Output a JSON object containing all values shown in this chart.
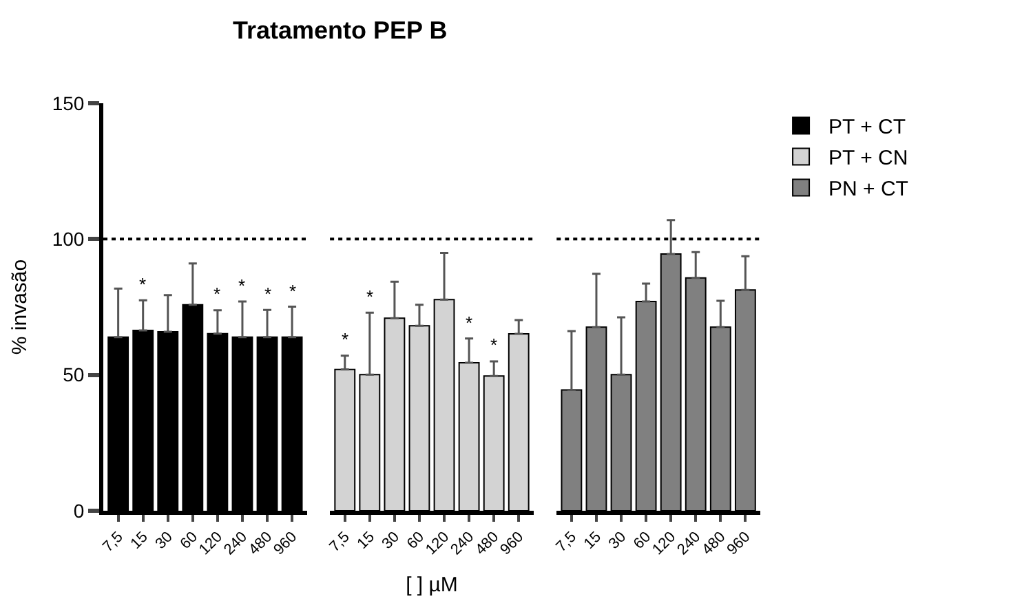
{
  "chart_data": [
    {
      "type": "bar",
      "title": "Tratamento PEP B",
      "ylabel": "% invasão",
      "categories": [
        "7,5",
        "15",
        "30",
        "60",
        "120",
        "240",
        "480",
        "960"
      ],
      "series": [
        {
          "name": "PT + CT",
          "color": "#000000",
          "values": [
            63.9,
            66.4,
            65.9,
            75.8,
            65.2,
            63.9,
            63.9,
            63.9
          ],
          "errors": [
            [
              63.9,
              81.8
            ],
            [
              66.4,
              77.5
            ],
            [
              65.9,
              79.4
            ],
            [
              75.8,
              91
            ],
            [
              65.2,
              73.8
            ],
            [
              63.9,
              77
            ],
            [
              63.9,
              73.9
            ],
            [
              63.9,
              75.1
            ]
          ]
        }
      ],
      "ylim": [
        0,
        150
      ],
      "yticks": [
        0,
        50,
        100,
        150
      ],
      "legend": "top right",
      "ref_lines": [
        {
          "axis": "y",
          "value": 100,
          "line_style": "dotted",
          "color": "#000000"
        }
      ],
      "annotations": [
        {
          "text": "*",
          "x": "15",
          "y": 77.5
        },
        {
          "text": "*",
          "x": "120",
          "y": 73.8
        },
        {
          "text": "*",
          "x": "240",
          "y": 77
        },
        {
          "text": "*",
          "x": "480",
          "y": 73.9
        },
        {
          "text": "*",
          "x": "960",
          "y": 75.1
        }
      ]
    },
    {
      "type": "bar",
      "xlabel": "[ ] µM",
      "categories": [
        "7,5",
        "15",
        "30",
        "60",
        "120",
        "240",
        "480",
        "960"
      ],
      "series": [
        {
          "name": "PT + CN",
          "color": "#d3d3d3",
          "values": [
            52,
            50.1,
            70.9,
            68.1,
            77.7,
            54.5,
            49.6,
            65.1
          ],
          "errors": [
            [
              52,
              57.1
            ],
            [
              50.1,
              72.9
            ],
            [
              70.9,
              84.3
            ],
            [
              68.1,
              75.8
            ],
            [
              77.7,
              94.9
            ],
            [
              54.5,
              63.4
            ],
            [
              49.6,
              55
            ],
            [
              65.1,
              70.2
            ]
          ]
        }
      ],
      "ylim": [
        0,
        150
      ],
      "tick_labels": "x",
      "legend": "top right",
      "ref_lines": [
        {
          "axis": "y",
          "value": 100,
          "line_style": "dotted",
          "color": "#000000"
        }
      ],
      "annotations": [
        {
          "text": "*",
          "x": "7,5",
          "y": 57.1
        },
        {
          "text": "*",
          "x": "15",
          "y": 72.9
        },
        {
          "text": "*",
          "x": "240",
          "y": 63.4
        },
        {
          "text": "*",
          "x": "480",
          "y": 55
        }
      ]
    },
    {
      "type": "bar",
      "categories": [
        "7,5",
        "15",
        "30",
        "60",
        "120",
        "240",
        "480",
        "960"
      ],
      "series": [
        {
          "name": "PN + CT",
          "color": "#808080",
          "values": [
            44.5,
            67.6,
            50.1,
            77,
            94.5,
            85.7,
            67.6,
            81.3
          ],
          "errors": [
            [
              44.5,
              66.1
            ],
            [
              67.6,
              87.2
            ],
            [
              50.1,
              71.2
            ],
            [
              77,
              83.6
            ],
            [
              94.5,
              107
            ],
            [
              85.7,
              95.2
            ],
            [
              67.6,
              77.3
            ],
            [
              81.3,
              93.7
            ]
          ]
        }
      ],
      "ylim": [
        0,
        150
      ],
      "tick_labels": "x",
      "legend": "top right",
      "ref_lines": [
        {
          "axis": "y",
          "value": 100,
          "line_style": "dotted",
          "color": "#000000"
        }
      ]
    }
  ]
}
